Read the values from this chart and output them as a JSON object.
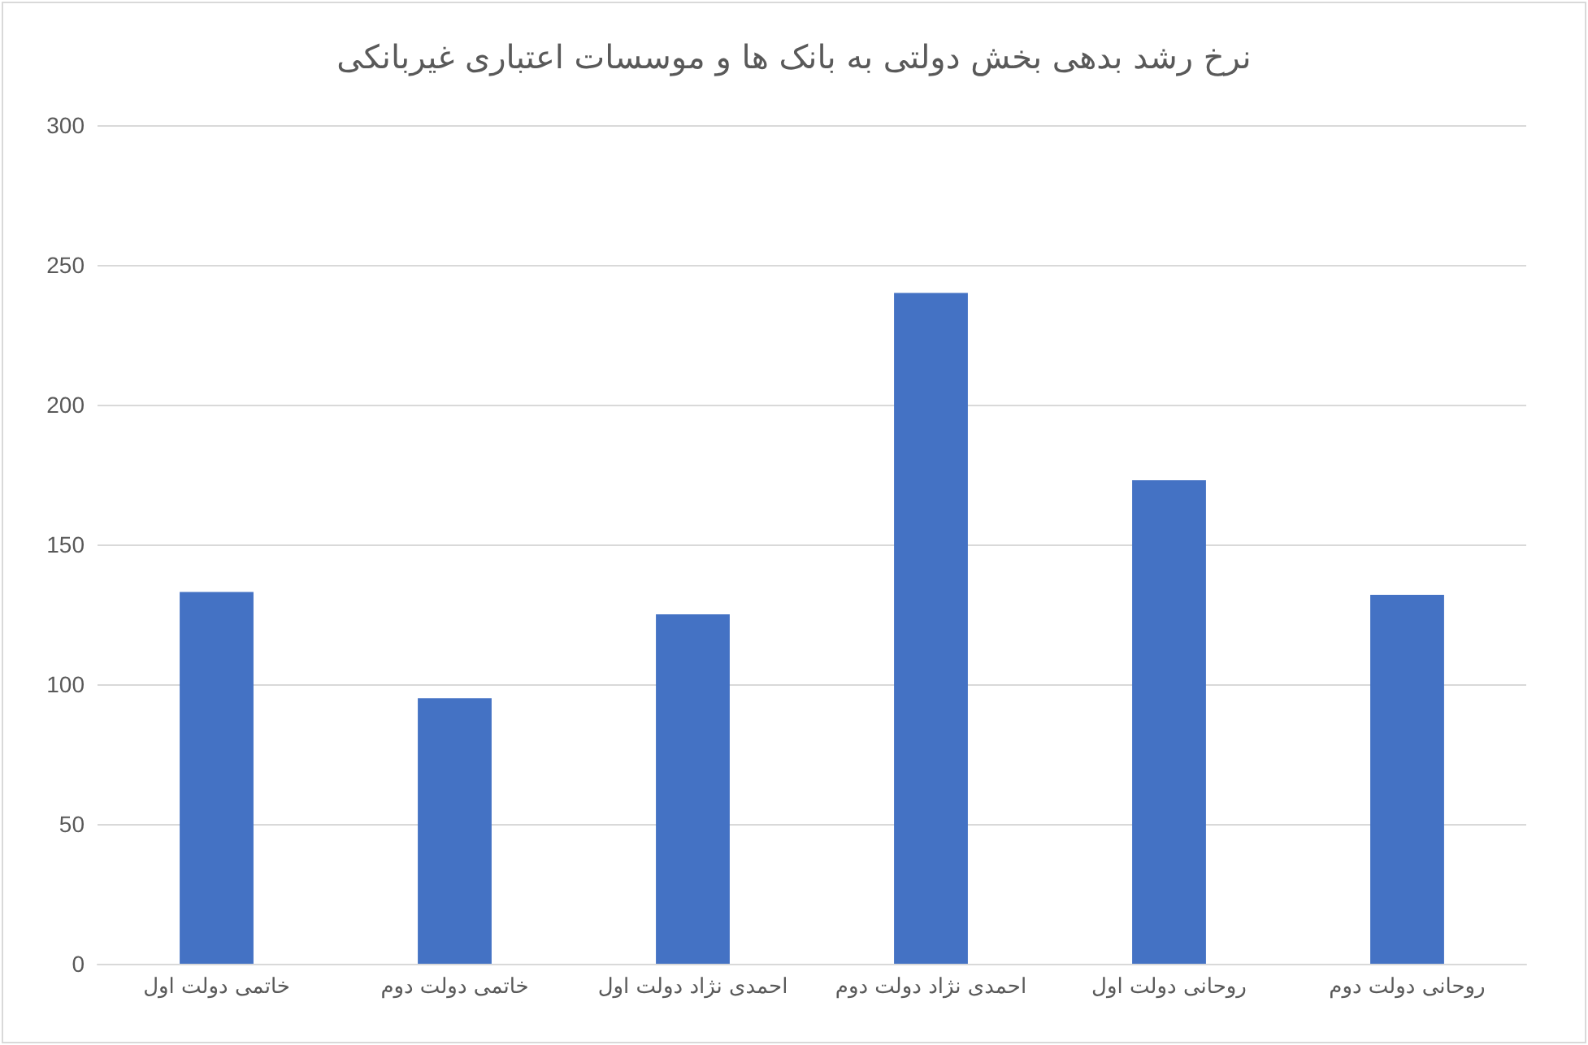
{
  "chart_data": {
    "type": "bar",
    "title": "نرخ رشد بدهی بخش دولتی به بانک ها و موسسات اعتباری غیربانکی",
    "categories": [
      "خاتمی دولت اول",
      "خاتمی دولت دوم",
      "احمدی نژاد دولت اول",
      "احمدی نژاد دولت دوم",
      "روحانی دولت اول",
      "روحانی دولت دوم"
    ],
    "values": [
      133,
      95,
      125,
      240,
      173,
      132
    ],
    "color": "#4472c4",
    "ylim": [
      0,
      300
    ],
    "yticks": [
      0,
      50,
      100,
      150,
      200,
      250,
      300
    ],
    "grid": "y"
  }
}
